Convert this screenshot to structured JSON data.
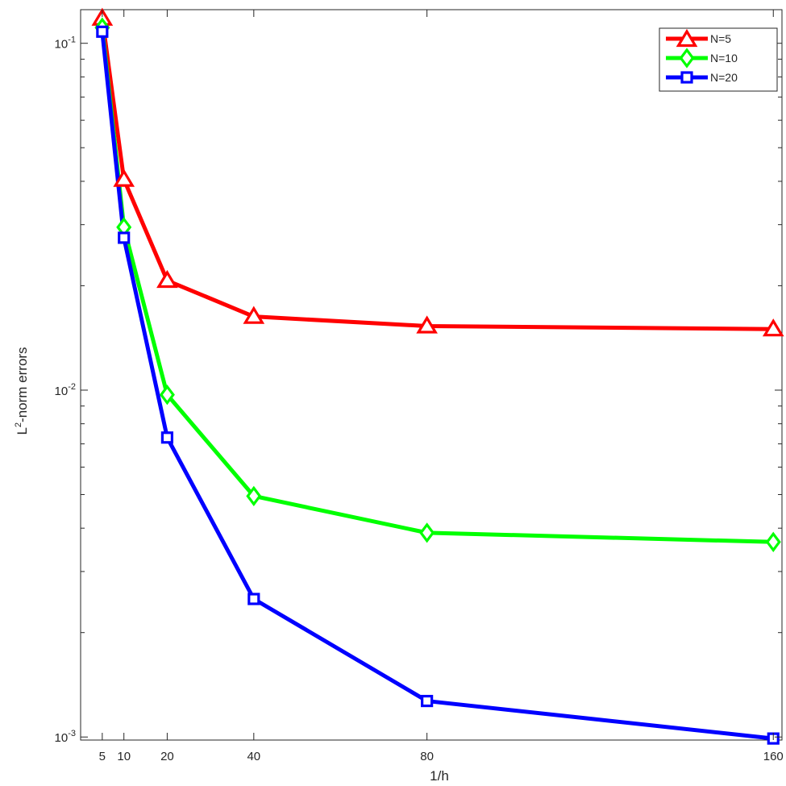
{
  "chart_data": {
    "type": "line",
    "title": "",
    "xlabel": "1/h",
    "ylabel_base": "L",
    "ylabel_sup": "2",
    "ylabel_rest": "-norm  errors",
    "x": [
      5,
      10,
      20,
      40,
      80,
      160
    ],
    "x_tick_labels": [
      "5",
      "10",
      "20",
      "40",
      "80",
      "160"
    ],
    "y_scale": "log",
    "ylim": [
      0.00098,
      0.125
    ],
    "xlim": [
      0,
      162
    ],
    "y_ticks": [
      {
        "base": "10",
        "exp": "-1",
        "value": 0.1
      },
      {
        "base": "10",
        "exp": "-2",
        "value": 0.01
      },
      {
        "base": "10",
        "exp": "-3",
        "value": 0.001
      }
    ],
    "grid": false,
    "legend_position": "top-right",
    "series": [
      {
        "name": "N=5",
        "color": "#ff0000",
        "marker": "triangle",
        "values": [
          0.118,
          0.0405,
          0.0207,
          0.0163,
          0.0153,
          0.015
        ]
      },
      {
        "name": "N=10",
        "color": "#00ff00",
        "marker": "diamond",
        "values": [
          0.111,
          0.0295,
          0.0097,
          0.00495,
          0.00388,
          0.00365
        ]
      },
      {
        "name": "N=20",
        "color": "#0000ff",
        "marker": "square",
        "values": [
          0.108,
          0.0275,
          0.0073,
          0.0025,
          0.00127,
          0.00099
        ]
      }
    ]
  }
}
